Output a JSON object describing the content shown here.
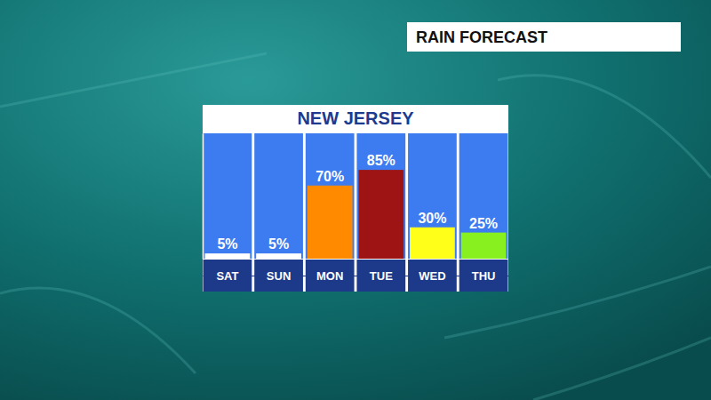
{
  "chart_data": {
    "type": "bar",
    "title": "RAIN FORECAST",
    "subtitle": "NEW JERSEY",
    "categories": [
      "SAT",
      "SUN",
      "MON",
      "TUE",
      "WED",
      "THU"
    ],
    "values": [
      5,
      5,
      70,
      85,
      30,
      25
    ],
    "value_labels": [
      "5%",
      "5%",
      "70%",
      "85%",
      "30%",
      "25%"
    ],
    "colors": [
      "#ffffff",
      "#ffffff",
      "#ff8a00",
      "#9e1414",
      "#ffff1a",
      "#88f01e"
    ],
    "ylim": [
      0,
      120
    ],
    "data_labels": true,
    "tick_labels": "x"
  }
}
